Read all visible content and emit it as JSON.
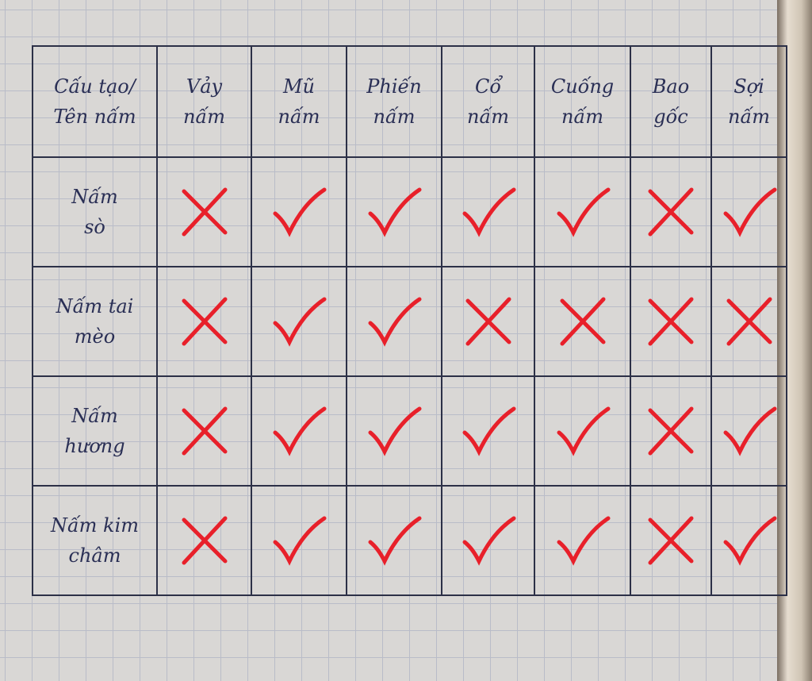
{
  "table": {
    "corner_header": [
      "Cấu tạo/",
      "Tên nấm"
    ],
    "columns": [
      [
        "Vảy",
        "nấm"
      ],
      [
        "Mũ",
        "nấm"
      ],
      [
        "Phiến",
        "nấm"
      ],
      [
        "Cổ",
        "nấm"
      ],
      [
        "Cuống",
        "nấm"
      ],
      [
        "Bao",
        "gốc"
      ],
      [
        "Sợi",
        "nấm"
      ]
    ],
    "rows": [
      {
        "name": [
          "Nấm",
          "sò"
        ],
        "marks": [
          "cross",
          "check",
          "check",
          "check",
          "check",
          "cross",
          "check"
        ]
      },
      {
        "name": [
          "Nấm tai",
          "mèo"
        ],
        "marks": [
          "cross",
          "check",
          "check",
          "cross",
          "cross",
          "cross",
          "cross"
        ]
      },
      {
        "name": [
          "Nấm",
          "hương"
        ],
        "marks": [
          "cross",
          "check",
          "check",
          "check",
          "check",
          "cross",
          "check"
        ]
      },
      {
        "name": [
          "Nấm kim",
          "châm"
        ],
        "marks": [
          "cross",
          "check",
          "check",
          "check",
          "check",
          "cross",
          "check"
        ]
      }
    ]
  },
  "colors": {
    "ink": "#2a2f55",
    "mark": "#e8202a",
    "grid": "#b9bcc8"
  }
}
